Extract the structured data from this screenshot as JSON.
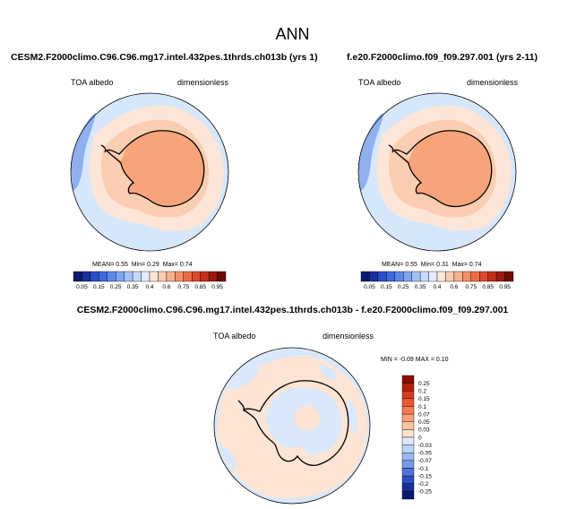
{
  "figure": {
    "title": "ANN"
  },
  "panels": {
    "left": {
      "case": "CESM2.F2000climo.C96.C96.mg17.intel.432pes.1thrds.ch013b (yrs 1)",
      "variable": "TOA albedo",
      "units": "dimensionless",
      "stats": {
        "mean_label": "MEAN=",
        "mean": "0.55",
        "min_label": "Min=",
        "min": "0.29",
        "max_label": "Max=",
        "max": "0.74"
      }
    },
    "right": {
      "case": "f.e20.F2000climo.f09_f09.297.001 (yrs 2-11)",
      "variable": "TOA albedo",
      "units": "dimensionless",
      "stats": {
        "mean_label": "MEAN=",
        "mean": "0.55",
        "min_label": "Min=",
        "min": "0.31",
        "max_label": "Max=",
        "max": "0.74"
      }
    },
    "diff": {
      "case": "CESM2.F2000climo.C96.C96.mg17.intel.432pes.1thrds.ch013b - f.e20.F2000climo.f09_f09.297.001",
      "variable": "TOA albedo",
      "units": "dimensionless",
      "stats": {
        "min_label": "MIN =",
        "min": "-0.09",
        "max_label": "MAX =",
        "max": "0.10"
      }
    }
  },
  "colorbars": {
    "abs": {
      "labels": [
        "0.05",
        "0.15",
        "0.25",
        "0.35",
        "0.4",
        "0.6",
        "0.75",
        "0.85",
        "0.95"
      ],
      "colors": [
        "#0a1a70",
        "#1a2fa0",
        "#2a4fc8",
        "#3c6ae0",
        "#5b88ec",
        "#7fa6f2",
        "#a5c2f6",
        "#c6dbfa",
        "#e4eefc",
        "#fde6d8",
        "#fbcdb1",
        "#f8b08a",
        "#f59066",
        "#ee6b45",
        "#de4a2a",
        "#c22e18",
        "#9c1a0c",
        "#6e0a02"
      ]
    },
    "diff": {
      "labels": [
        "0.25",
        "0.2",
        "0.15",
        "0.1",
        "0.07",
        "0.05",
        "0.03",
        "0",
        "-0.03",
        "-0.05",
        "-0.07",
        "-0.1",
        "-0.15",
        "-0.2",
        "-0.25"
      ],
      "colors": [
        "#8a0e04",
        "#b41f0e",
        "#d63a1e",
        "#eb5a35",
        "#f47c51",
        "#f9a079",
        "#fbc4a5",
        "#fde3d2",
        "#ddeafb",
        "#bcd4f7",
        "#9ab8f1",
        "#779be9",
        "#4f74dc",
        "#2e4ec3",
        "#162f9a",
        "#0a1a6e"
      ]
    }
  },
  "map_colors": {
    "ocean_abs": "#d6e7fb",
    "pale_orange": "#fde6d8",
    "mid_orange": "#fbcdb1",
    "ice_orange": "#f6a47a",
    "blue_strip": "#8fb0ee",
    "diff_blue": "#d9e8fb",
    "diff_orange": "#fde4d4",
    "coast": "#000000"
  }
}
